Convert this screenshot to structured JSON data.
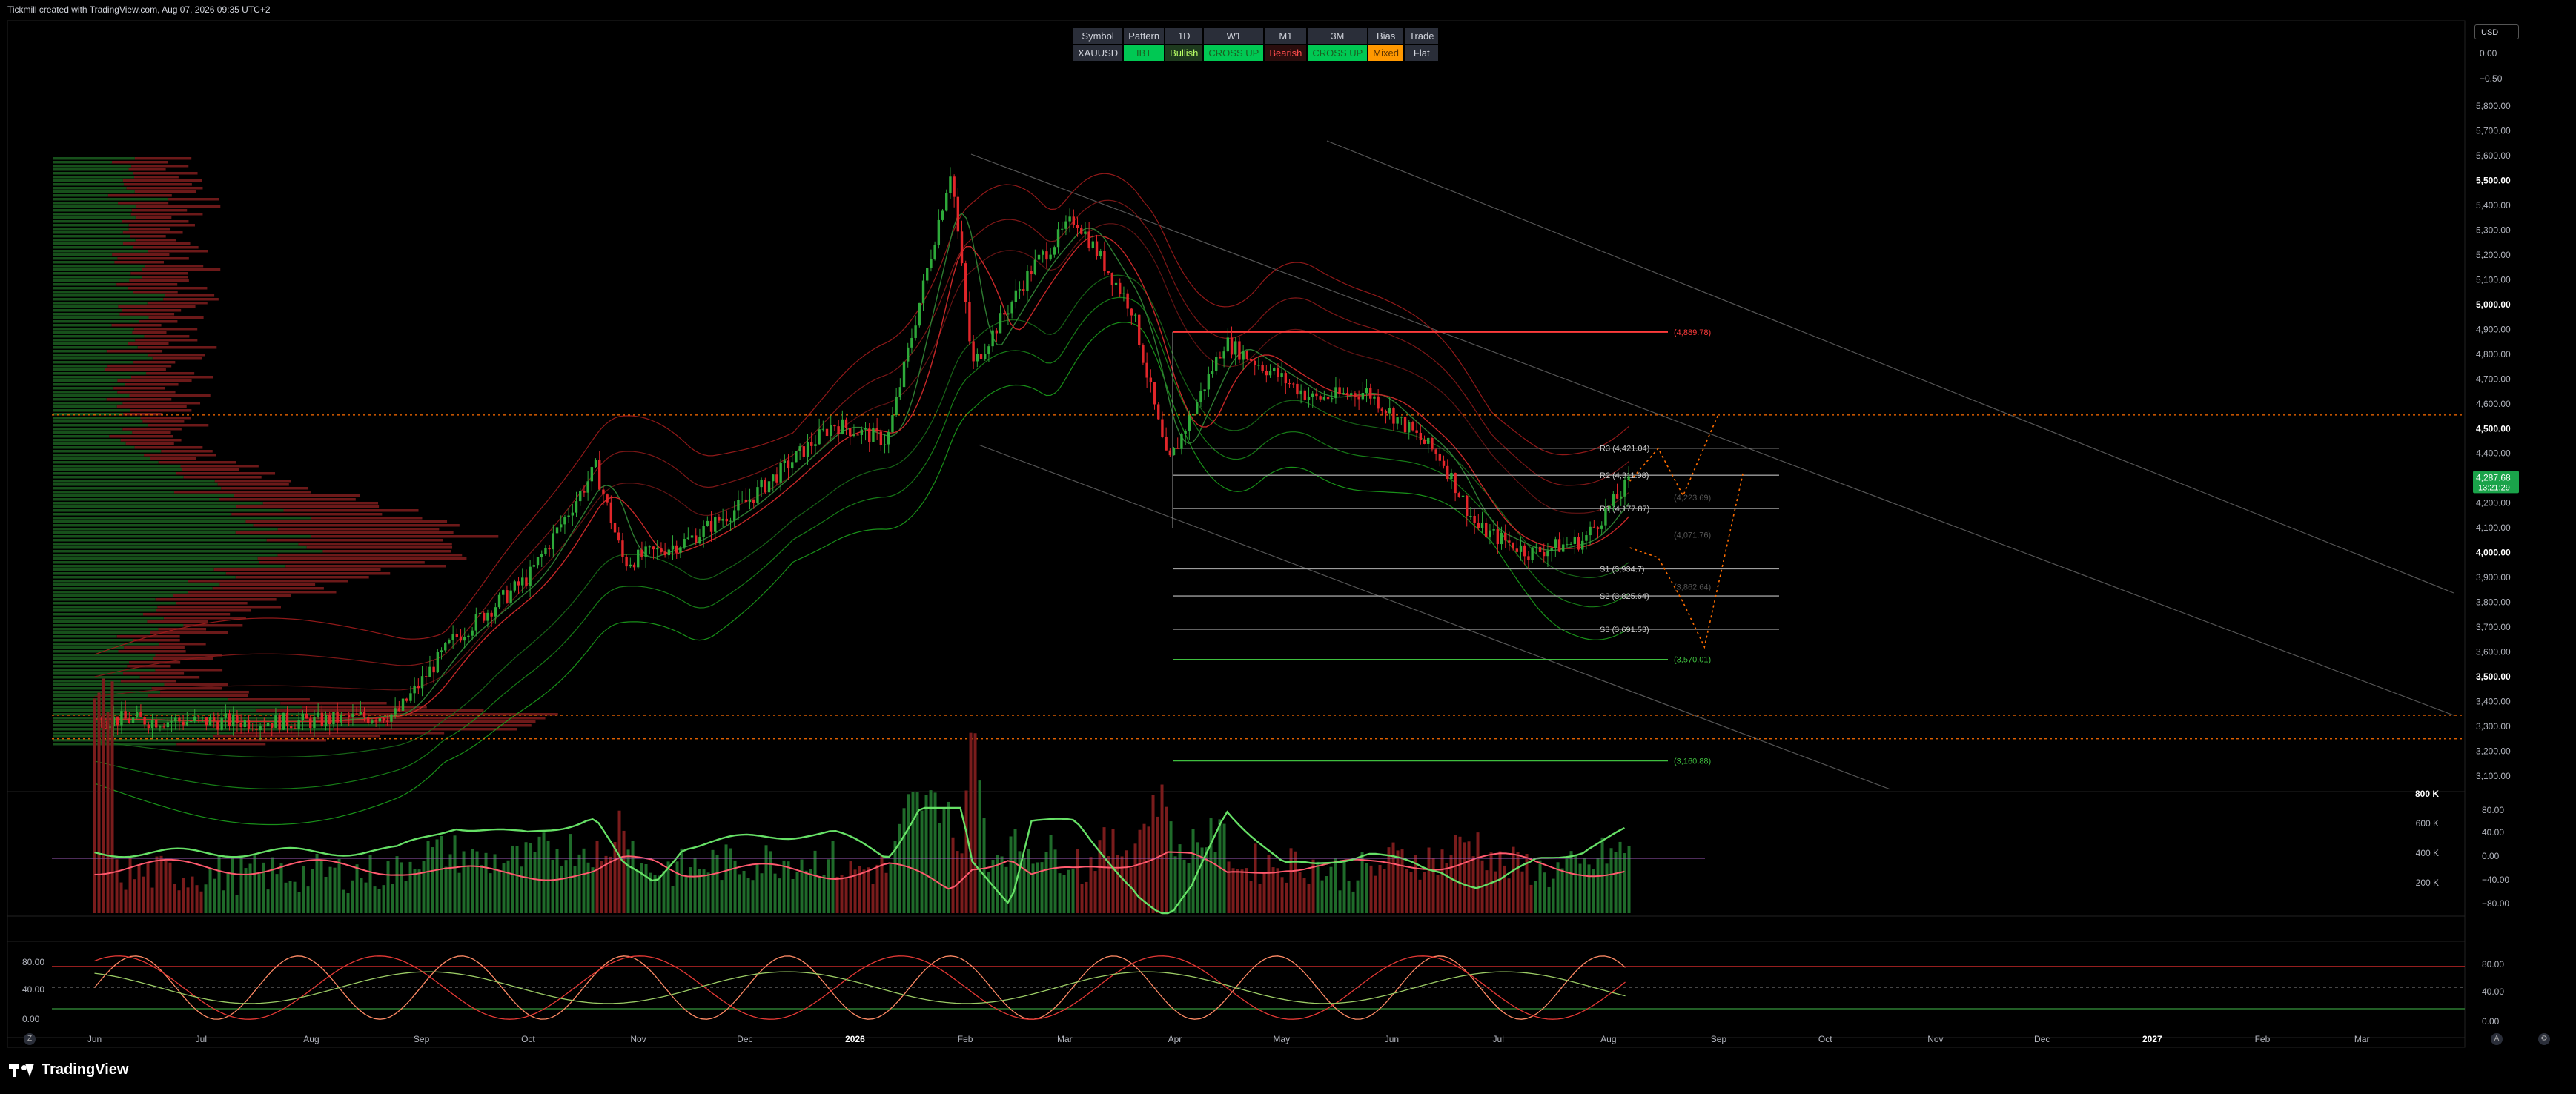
{
  "caption": "Tickmill created with TradingView.com, Aug 07, 2026 09:35 UTC+2",
  "brand": "TradingView",
  "currency": "USD",
  "bias_table": {
    "headers": [
      "Symbol",
      "Pattern",
      "1D",
      "W1",
      "M1",
      "3M",
      "Bias",
      "Trade"
    ],
    "row": [
      "XAUUSD",
      "IBT",
      "Bullish",
      "CROSS UP",
      "Bearish",
      "CROSS UP",
      "Mixed",
      "Flat"
    ]
  },
  "price_axis": {
    "ticks": [
      5800,
      5700,
      5600,
      5500,
      5400,
      5300,
      5200,
      5100,
      5000,
      4900,
      4800,
      4700,
      4600,
      4500,
      4400,
      4300,
      4200,
      4100,
      4000,
      3900,
      3800,
      3700,
      3600,
      3500,
      3400,
      3300,
      3200,
      3100
    ],
    "labels": [
      "5,800.00",
      "5,700.00",
      "5,600.00",
      "5,500.00",
      "5,400.00",
      "5,300.00",
      "5,200.00",
      "5,100.00",
      "5,000.00",
      "4,900.00",
      "4,800.00",
      "4,700.00",
      "4,600.00",
      "4,500.00",
      "4,400.00",
      "4,300.00",
      "4,200.00",
      "4,100.00",
      "4,000.00",
      "3,900.00",
      "3,800.00",
      "3,700.00",
      "3,600.00",
      "3,500.00",
      "3,400.00",
      "3,300.00",
      "3,200.00",
      "3,100.00"
    ],
    "bold": [
      5500,
      5000,
      4500,
      4000,
      3500
    ],
    "top_labels": [
      "0.00",
      "−0.50"
    ],
    "current_price": "4,287.68",
    "countdown": "13:21:29",
    "current_value": 4287.68
  },
  "time_axis": [
    "Jun",
    "Jul",
    "Aug",
    "Sep",
    "Oct",
    "Nov",
    "Dec",
    "2026",
    "Feb",
    "Mar",
    "Apr",
    "May",
    "Jun",
    "Jul",
    "Aug",
    "Sep",
    "Oct",
    "Nov",
    "Dec",
    "2027",
    "Feb",
    "Mar"
  ],
  "time_axis_bold": [
    "2026",
    "2027"
  ],
  "levels": [
    {
      "label": "(4,889.78)",
      "value": 4889.78,
      "color": "#ff3b3b"
    },
    {
      "label": "R3 (4,421.04)",
      "value": 4421.04,
      "color": "#9e9e9e"
    },
    {
      "label": "R2 (4,311.98)",
      "value": 4311.98,
      "color": "#9e9e9e"
    },
    {
      "label": "R1 (4,177.87)",
      "value": 4177.87,
      "color": "#9e9e9e"
    },
    {
      "label": "S1 (3,934.7)",
      "value": 3934.7,
      "color": "#9e9e9e"
    },
    {
      "label": "S2 (3,825.64)",
      "value": 3825.64,
      "color": "#9e9e9e"
    },
    {
      "label": "S3 (3,691.53)",
      "value": 3691.53,
      "color": "#9e9e9e"
    },
    {
      "label": "(3,570.01)",
      "value": 3570.01,
      "color": "#3fbf3f"
    },
    {
      "label": "(3,160.88)",
      "value": 3160.88,
      "color": "#3fbf3f"
    }
  ],
  "dotted_levels": [
    4555,
    3345,
    3250
  ],
  "minor_labels": [
    "(4,223.69)",
    "(4,071.76)",
    "(3,862.64)"
  ],
  "volume_axis": [
    "800 K",
    "600 K",
    "400 K",
    "200 K"
  ],
  "osc_axis": [
    "80.00",
    "40.00",
    "0.00",
    "−40.00",
    "−80.00"
  ],
  "stoch_axis": [
    "80.00",
    "40.00",
    "0.00"
  ],
  "stoch_axis_left": [
    "80.00",
    "40.00",
    "0.00"
  ],
  "chart_data": {
    "type": "candlestick",
    "symbol": "XAUUSD",
    "ylim": [
      3050,
      5900
    ],
    "anchor_points": [
      [
        "2025-06-01",
        3330
      ],
      [
        "2025-07-01",
        3320
      ],
      [
        "2025-08-01",
        3320
      ],
      [
        "2025-08-25",
        3350
      ],
      [
        "2025-09-10",
        3650
      ],
      [
        "2025-10-01",
        3900
      ],
      [
        "2025-10-20",
        4340
      ],
      [
        "2025-10-28",
        3960
      ],
      [
        "2025-11-15",
        4050
      ],
      [
        "2025-12-01",
        4200
      ],
      [
        "2025-12-26",
        4520
      ],
      [
        "2026-01-10",
        4450
      ],
      [
        "2026-01-28",
        5550
      ],
      [
        "2026-02-03",
        4750
      ],
      [
        "2026-02-20",
        5150
      ],
      [
        "2026-03-04",
        5350
      ],
      [
        "2026-03-20",
        4980
      ],
      [
        "2026-03-30",
        4350
      ],
      [
        "2026-04-15",
        4850
      ],
      [
        "2026-05-10",
        4620
      ],
      [
        "2026-05-25",
        4650
      ],
      [
        "2026-06-15",
        4380
      ],
      [
        "2026-06-25",
        4100
      ],
      [
        "2026-07-10",
        4000
      ],
      [
        "2026-07-25",
        4050
      ],
      [
        "2026-08-07",
        4288
      ]
    ],
    "projection_points": [
      [
        "2026-08-07",
        4288
      ],
      [
        "2026-08-15",
        4420
      ],
      [
        "2026-08-22",
        4230
      ],
      [
        "2026-09-01",
        4560
      ]
    ],
    "projection_points_2": [
      [
        "2026-08-07",
        4020
      ],
      [
        "2026-08-15",
        3980
      ],
      [
        "2026-08-22",
        3800
      ],
      [
        "2026-08-28",
        3620
      ],
      [
        "2026-09-08",
        4330
      ]
    ]
  }
}
